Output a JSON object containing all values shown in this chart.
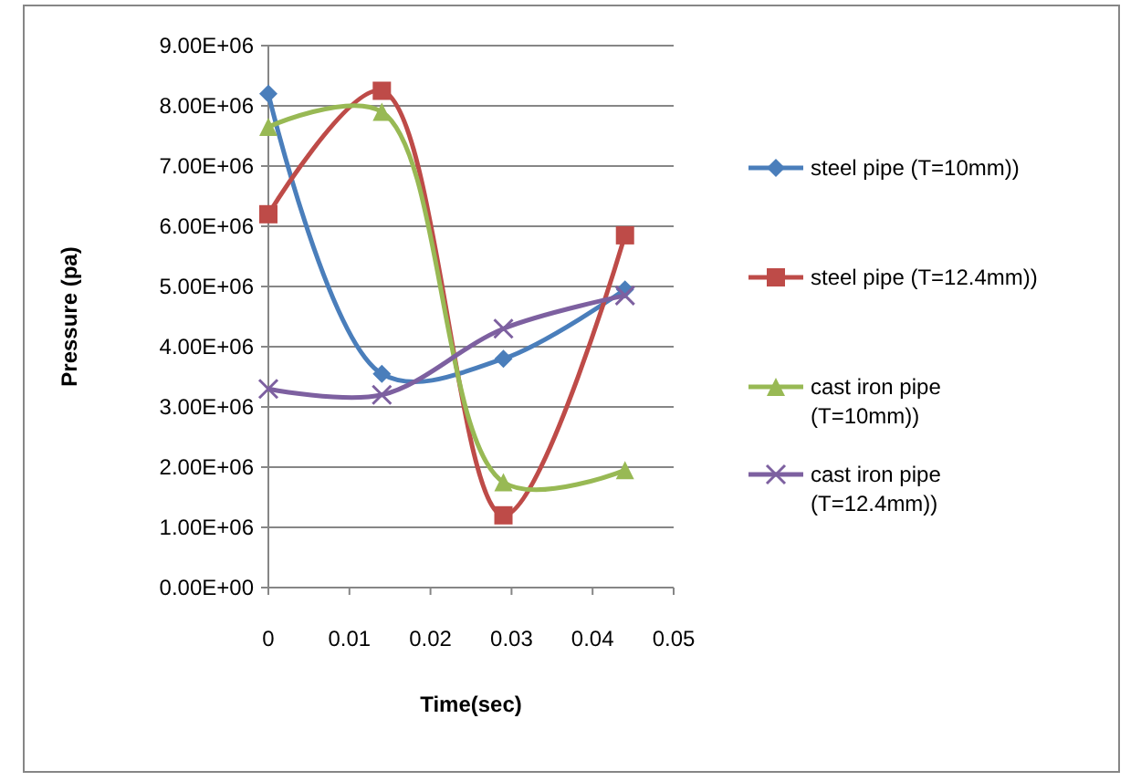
{
  "chart_data": {
    "type": "line",
    "xlabel": "Time(sec)",
    "ylabel": "Pressure (pa)",
    "xlim": [
      0,
      0.05
    ],
    "xticks": [
      0,
      0.01,
      0.02,
      0.03,
      0.04,
      0.05
    ],
    "ylim": [
      0,
      9000000
    ],
    "yticks": [
      {
        "value": 0,
        "label": "0.00E+00"
      },
      {
        "value": 1000000,
        "label": "1.00E+06"
      },
      {
        "value": 2000000,
        "label": "2.00E+06"
      },
      {
        "value": 3000000,
        "label": "3.00E+06"
      },
      {
        "value": 4000000,
        "label": "4.00E+06"
      },
      {
        "value": 5000000,
        "label": "5.00E+06"
      },
      {
        "value": 6000000,
        "label": "6.00E+06"
      },
      {
        "value": 7000000,
        "label": "7.00E+06"
      },
      {
        "value": 8000000,
        "label": "8.00E+06"
      },
      {
        "value": 9000000,
        "label": "9.00E+06"
      }
    ],
    "grid": "y",
    "legend": "right",
    "x": [
      0,
      0.014,
      0.029,
      0.044
    ],
    "series": [
      {
        "name": "steel pipe (T=10mm))",
        "color": "#4a7ebb",
        "marker": "diamond",
        "values": [
          8200000,
          3550000,
          3800000,
          4950000
        ]
      },
      {
        "name": "steel pipe (T=12.4mm))",
        "color": "#be4b48",
        "marker": "square",
        "values": [
          6200000,
          8250000,
          1200000,
          5850000
        ]
      },
      {
        "name": "cast iron pipe (T=10mm))",
        "color": "#98b954",
        "marker": "triangle",
        "values": [
          7650000,
          7900000,
          1750000,
          1950000
        ]
      },
      {
        "name": "cast iron pipe (T=12.4mm))",
        "color": "#7d60a0",
        "marker": "cross",
        "values": [
          3300000,
          3200000,
          4300000,
          4850000
        ]
      }
    ]
  }
}
